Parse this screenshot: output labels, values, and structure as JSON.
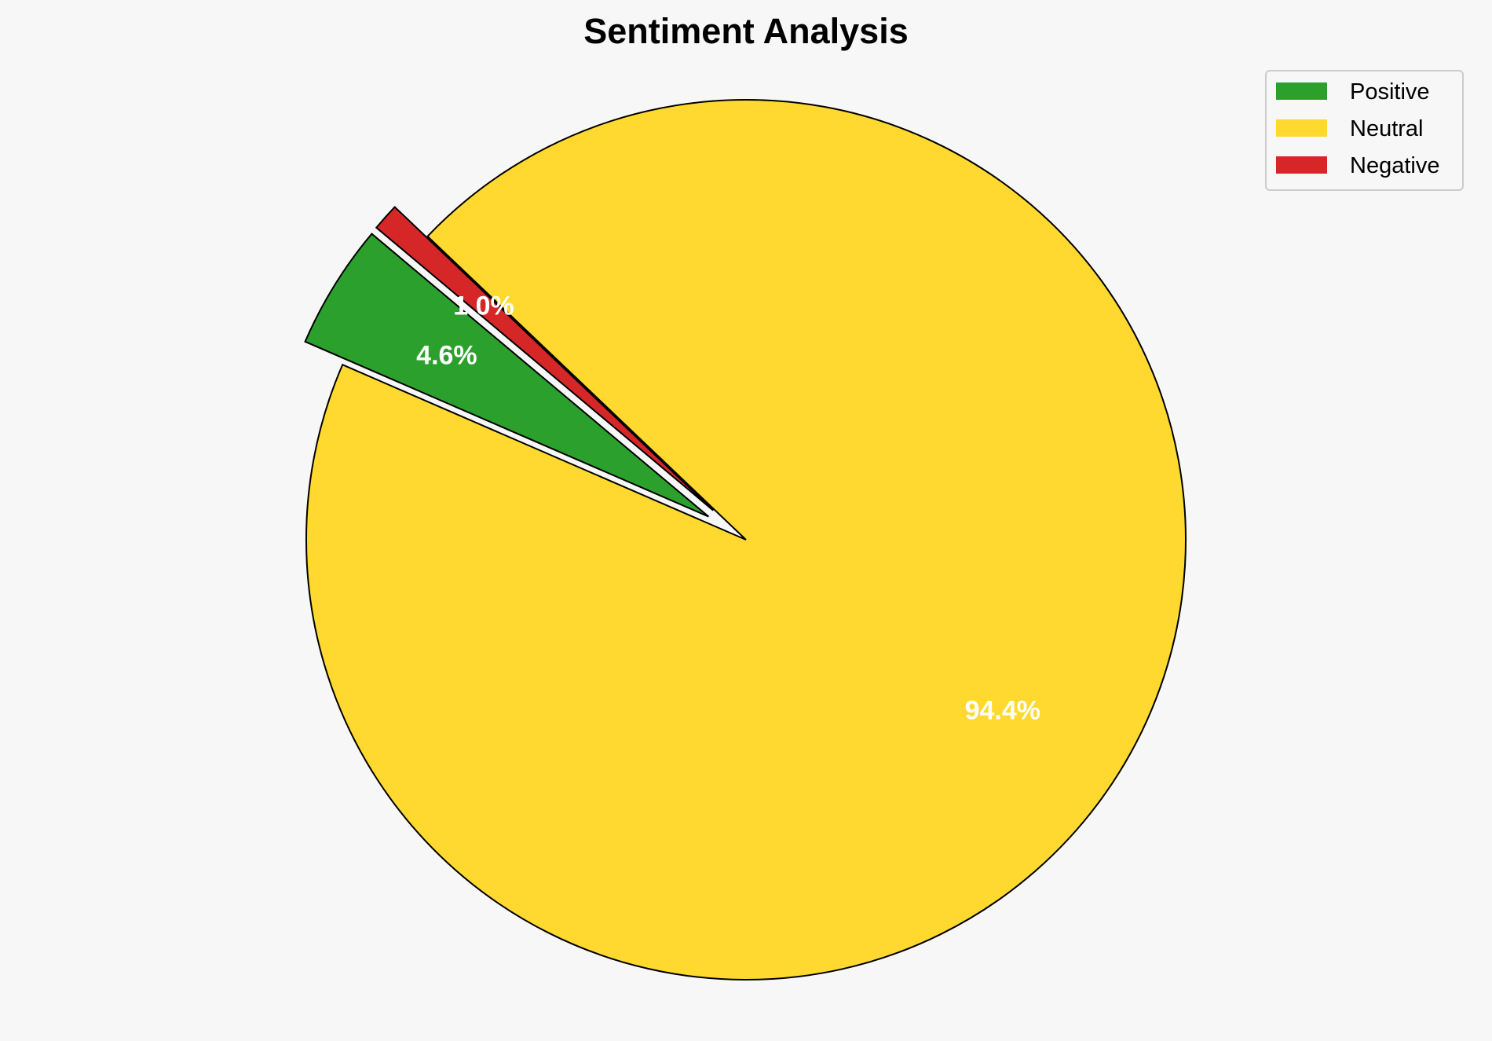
{
  "chart_data": {
    "type": "pie",
    "title": "Sentiment Analysis",
    "categories": [
      "Positive",
      "Neutral",
      "Negative"
    ],
    "values": [
      4.6,
      94.4,
      1.0
    ],
    "labels": [
      "4.6%",
      "94.4%",
      "1.0%"
    ],
    "colors": [
      "#2ca02c",
      "#ffd92f",
      "#d62728"
    ],
    "explode": [
      0.1,
      0,
      0.1
    ],
    "start_angle_deg": 140,
    "direction": "counterclockwise",
    "legend_placement": "top-right"
  }
}
